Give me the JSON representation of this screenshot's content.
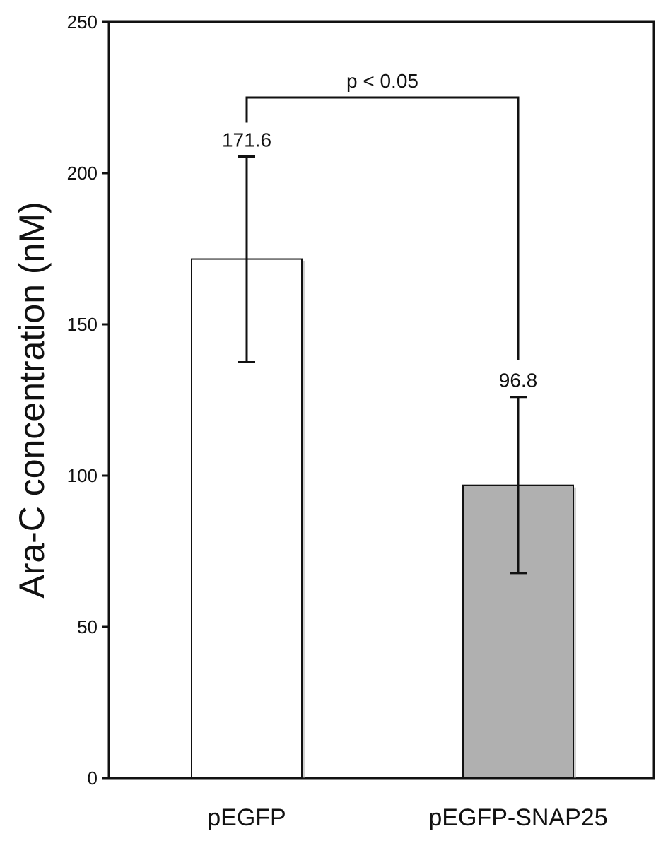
{
  "chart_data": {
    "type": "bar",
    "categories": [
      "pEGFP",
      "pEGFP-SNAP25"
    ],
    "values": [
      171.6,
      96.8
    ],
    "error_low": [
      137.5,
      67.8
    ],
    "error_high": [
      205.5,
      126.0
    ],
    "data_labels": [
      "171.6",
      "96.8"
    ],
    "colors": [
      "#ffffff",
      "#b0b0b0"
    ],
    "ylabel": "Ara-C concentration (nM)",
    "xlabel": "",
    "ylim": [
      0,
      250
    ],
    "yticks": [
      0,
      50,
      100,
      150,
      200,
      250
    ],
    "grid": false,
    "annotation": {
      "text": "p < 0.05",
      "between": [
        "pEGFP",
        "pEGFP-SNAP25"
      ],
      "bracket_y": 225
    }
  }
}
